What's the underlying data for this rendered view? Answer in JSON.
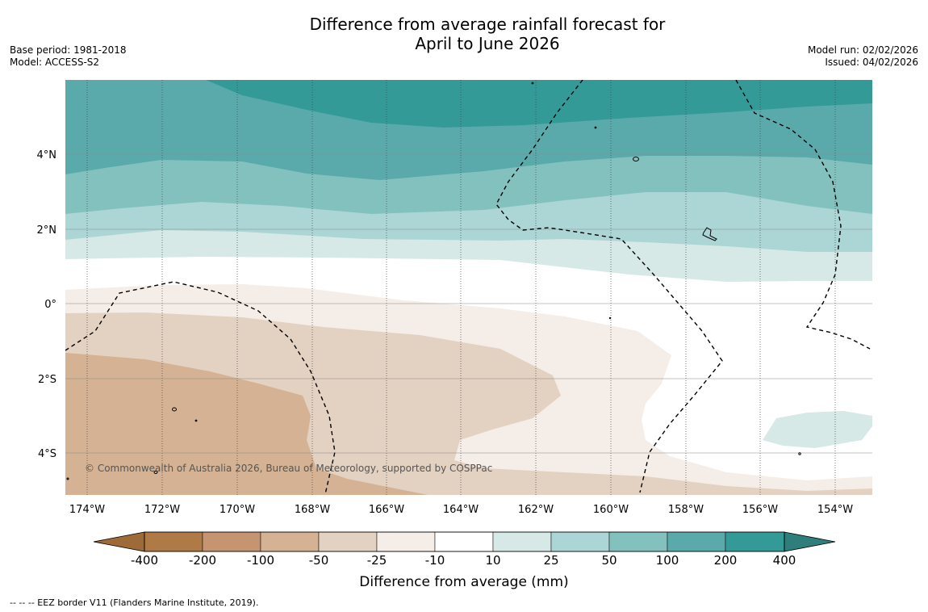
{
  "title": {
    "line1": "Difference from average rainfall forecast for",
    "line2": "April to June 2026"
  },
  "meta": {
    "base_period": "Base period: 1981-2018",
    "model": "Model: ACCESS-S2",
    "model_run": "Model run: 02/02/2026",
    "issued": "Issued: 04/02/2026"
  },
  "map": {
    "latitude_labels": [
      "4°N",
      "2°N",
      "0°",
      "2°S",
      "4°S"
    ],
    "longitude_labels": [
      "174°W",
      "172°W",
      "170°W",
      "168°W",
      "166°W",
      "164°W",
      "162°W",
      "160°W",
      "158°W",
      "156°W",
      "154°W"
    ],
    "copyright": "© Commonwealth of Australia 2026, Bureau of Meteorology, supported by COSPPac"
  },
  "legend": {
    "title": "Difference from average (mm)",
    "tick_labels": [
      "-400",
      "-200",
      "-100",
      "-50",
      "-25",
      "-10",
      "10",
      "25",
      "50",
      "100",
      "200",
      "400"
    ],
    "colors": [
      "#9e6a38",
      "#b07a47",
      "#c49570",
      "#d4b293",
      "#e3d1c1",
      "#f5ede7",
      "#ffffff",
      "#d6e9e7",
      "#acd6d5",
      "#83c1bf",
      "#5aaaac",
      "#339a98",
      "#2e7f7c"
    ]
  },
  "footer": {
    "eez_note": "--  --  -- EEZ border V11 (Flanders Marine Institute, 2019)."
  }
}
